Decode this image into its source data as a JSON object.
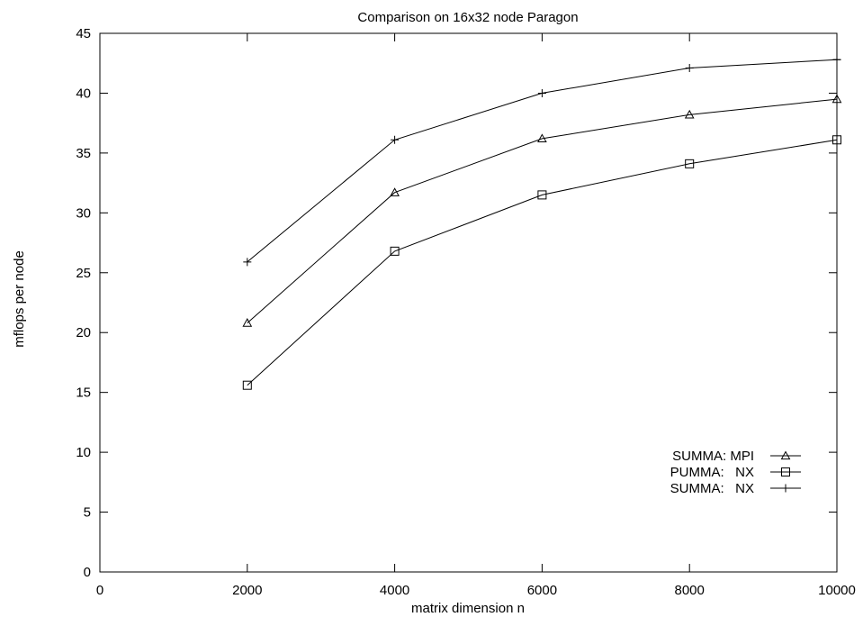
{
  "chart_data": {
    "type": "line",
    "title": "Comparison on 16x32 node Paragon",
    "xlabel": "matrix dimension n",
    "ylabel": "mflops per node",
    "xlim": [
      0,
      10000
    ],
    "ylim": [
      0,
      45
    ],
    "x_ticks": [
      "0",
      "2000",
      "4000",
      "6000",
      "8000",
      "10000"
    ],
    "y_ticks": [
      "0",
      "5",
      "10",
      "15",
      "20",
      "25",
      "30",
      "35",
      "40",
      "45"
    ],
    "grid": false,
    "legend_position": "bottom-right",
    "series": [
      {
        "name": "SUMMA: MPI",
        "marker": "triangle",
        "x": [
          2000,
          4000,
          6000,
          8000,
          10000
        ],
        "y": [
          20.8,
          31.7,
          36.2,
          38.2,
          39.5
        ]
      },
      {
        "name": "PUMMA:   NX",
        "marker": "square",
        "x": [
          2000,
          4000,
          6000,
          8000,
          10000
        ],
        "y": [
          15.6,
          26.8,
          31.5,
          34.1,
          36.1
        ]
      },
      {
        "name": "SUMMA:   NX",
        "marker": "plus",
        "x": [
          2000,
          4000,
          6000,
          8000,
          10000,
          10000
        ],
        "y": [
          25.9,
          36.1,
          40.0,
          42.1,
          42.8,
          42.8
        ]
      }
    ]
  }
}
